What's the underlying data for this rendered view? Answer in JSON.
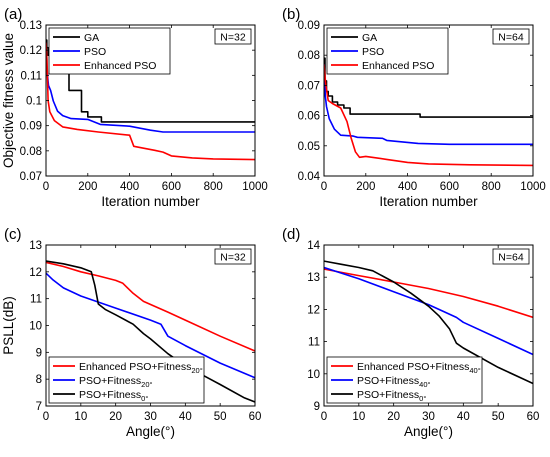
{
  "chart_data": [
    {
      "panel_label": "(a)",
      "type": "line",
      "badge": "N=32",
      "xlabel": "Iteration number",
      "ylabel": "Objective fitness value",
      "xlim": [
        0,
        1000
      ],
      "ylim": [
        0.07,
        0.13
      ],
      "xticks": [
        0,
        200,
        400,
        600,
        800,
        1000
      ],
      "yticks": [
        0.07,
        0.08,
        0.09,
        0.1,
        0.11,
        0.12,
        0.13
      ],
      "legend_position": "top-left",
      "series": [
        {
          "name": "GA",
          "color": "#000000",
          "step": true,
          "points": [
            [
              0,
              0.124
            ],
            [
              4,
              0.121
            ],
            [
              10,
              0.118
            ],
            [
              22,
              0.115
            ],
            [
              45,
              0.113
            ],
            [
              85,
              0.111
            ],
            [
              110,
              0.104
            ],
            [
              170,
              0.0955
            ],
            [
              190,
              0.0955
            ],
            [
              200,
              0.0935
            ],
            [
              250,
              0.0935
            ],
            [
              265,
              0.0915
            ],
            [
              1000,
              0.0915
            ]
          ]
        },
        {
          "name": "PSO",
          "color": "#0000ff",
          "step": false,
          "points": [
            [
              0,
              0.118
            ],
            [
              5,
              0.112
            ],
            [
              12,
              0.106
            ],
            [
              22,
              0.104
            ],
            [
              35,
              0.0998
            ],
            [
              55,
              0.0958
            ],
            [
              80,
              0.094
            ],
            [
              120,
              0.0928
            ],
            [
              200,
              0.0925
            ],
            [
              260,
              0.0905
            ],
            [
              400,
              0.0898
            ],
            [
              500,
              0.0882
            ],
            [
              560,
              0.0875
            ],
            [
              1000,
              0.0875
            ]
          ]
        },
        {
          "name": "Enhanced PSO",
          "color": "#ff0000",
          "step": false,
          "points": [
            [
              0,
              0.123
            ],
            [
              5,
              0.116
            ],
            [
              10,
              0.1
            ],
            [
              18,
              0.0955
            ],
            [
              40,
              0.092
            ],
            [
              80,
              0.0895
            ],
            [
              150,
              0.0885
            ],
            [
              250,
              0.0875
            ],
            [
              400,
              0.0862
            ],
            [
              420,
              0.0818
            ],
            [
              470,
              0.081
            ],
            [
              520,
              0.0802
            ],
            [
              560,
              0.0795
            ],
            [
              600,
              0.078
            ],
            [
              700,
              0.0772
            ],
            [
              800,
              0.0768
            ],
            [
              1000,
              0.0765
            ]
          ]
        }
      ]
    },
    {
      "panel_label": "(b)",
      "type": "line",
      "badge": "N=64",
      "xlabel": "Iteration number",
      "ylabel": "",
      "xlim": [
        0,
        1000
      ],
      "ylim": [
        0.04,
        0.09
      ],
      "xticks": [
        0,
        200,
        400,
        600,
        800,
        1000
      ],
      "yticks": [
        0.04,
        0.05,
        0.06,
        0.07,
        0.08,
        0.09
      ],
      "legend_position": "top-left",
      "series": [
        {
          "name": "GA",
          "color": "#000000",
          "step": true,
          "points": [
            [
              0,
              0.079
            ],
            [
              5,
              0.0715
            ],
            [
              12,
              0.068
            ],
            [
              20,
              0.0665
            ],
            [
              40,
              0.0645
            ],
            [
              65,
              0.0635
            ],
            [
              95,
              0.0625
            ],
            [
              125,
              0.0605
            ],
            [
              445,
              0.0605
            ],
            [
              460,
              0.0595
            ],
            [
              1000,
              0.0595
            ]
          ]
        },
        {
          "name": "PSO",
          "color": "#0000ff",
          "step": false,
          "points": [
            [
              0,
              0.077
            ],
            [
              6,
              0.0665
            ],
            [
              12,
              0.063
            ],
            [
              25,
              0.059
            ],
            [
              50,
              0.0555
            ],
            [
              80,
              0.0535
            ],
            [
              140,
              0.0532
            ],
            [
              160,
              0.0528
            ],
            [
              280,
              0.0525
            ],
            [
              300,
              0.0518
            ],
            [
              450,
              0.0508
            ],
            [
              600,
              0.0505
            ],
            [
              1000,
              0.0505
            ]
          ]
        },
        {
          "name": "Enhanced PSO",
          "color": "#ff0000",
          "step": false,
          "points": [
            [
              0,
              0.077
            ],
            [
              8,
              0.0705
            ],
            [
              20,
              0.065
            ],
            [
              40,
              0.064
            ],
            [
              80,
              0.0625
            ],
            [
              110,
              0.058
            ],
            [
              130,
              0.0525
            ],
            [
              150,
              0.048
            ],
            [
              170,
              0.0462
            ],
            [
              200,
              0.0465
            ],
            [
              300,
              0.0455
            ],
            [
              400,
              0.0445
            ],
            [
              500,
              0.044
            ],
            [
              700,
              0.0437
            ],
            [
              1000,
              0.0435
            ]
          ]
        }
      ]
    },
    {
      "panel_label": "(c)",
      "type": "line",
      "badge": "N=32",
      "xlabel": "Angle(°)",
      "ylabel": "PSLL(dB)",
      "xlim": [
        0,
        60
      ],
      "ylim": [
        7,
        13
      ],
      "xticks": [
        0,
        10,
        20,
        30,
        40,
        50,
        60
      ],
      "yticks": [
        7,
        8,
        9,
        10,
        11,
        12,
        13
      ],
      "legend_position": "bottom-left",
      "series": [
        {
          "name": "Enhanced PSO+Fitness",
          "subscript": "20°",
          "color": "#ff0000",
          "step": false,
          "points": [
            [
              0,
              12.35
            ],
            [
              5,
              12.2
            ],
            [
              10,
              12.0
            ],
            [
              15,
              11.85
            ],
            [
              20,
              11.68
            ],
            [
              22,
              11.58
            ],
            [
              25,
              11.2
            ],
            [
              28,
              10.9
            ],
            [
              35,
              10.5
            ],
            [
              40,
              10.2
            ],
            [
              50,
              9.6
            ],
            [
              60,
              9.05
            ]
          ]
        },
        {
          "name": "PSO+Fitness",
          "subscript": "20°",
          "color": "#0000ff",
          "step": false,
          "points": [
            [
              0,
              11.95
            ],
            [
              2,
              11.7
            ],
            [
              5,
              11.4
            ],
            [
              10,
              11.1
            ],
            [
              20,
              10.65
            ],
            [
              30,
              10.2
            ],
            [
              33,
              10.05
            ],
            [
              35,
              9.6
            ],
            [
              40,
              9.25
            ],
            [
              50,
              8.6
            ],
            [
              60,
              8.05
            ]
          ]
        },
        {
          "name": "PSO+Fitness",
          "subscript": "0°",
          "color": "#000000",
          "step": false,
          "points": [
            [
              0,
              12.4
            ],
            [
              5,
              12.3
            ],
            [
              10,
              12.15
            ],
            [
              13,
              12.0
            ],
            [
              14,
              11.5
            ],
            [
              15,
              10.8
            ],
            [
              17,
              10.6
            ],
            [
              20,
              10.4
            ],
            [
              25,
              10.05
            ],
            [
              28,
              9.7
            ],
            [
              30,
              9.5
            ],
            [
              35,
              8.95
            ],
            [
              40,
              8.5
            ],
            [
              50,
              7.8
            ],
            [
              57,
              7.3
            ],
            [
              60,
              7.15
            ]
          ]
        }
      ]
    },
    {
      "panel_label": "(d)",
      "type": "line",
      "badge": "N=64",
      "xlabel": "Angle(°)",
      "ylabel": "",
      "xlim": [
        0,
        60
      ],
      "ylim": [
        9,
        14
      ],
      "xticks": [
        0,
        10,
        20,
        30,
        40,
        50,
        60
      ],
      "yticks": [
        9,
        10,
        11,
        12,
        13,
        14
      ],
      "legend_position": "bottom-left",
      "series": [
        {
          "name": "Enhanced PSO+Fitness",
          "subscript": "40°",
          "color": "#ff0000",
          "step": false,
          "points": [
            [
              0,
              13.25
            ],
            [
              10,
              13.05
            ],
            [
              20,
              12.85
            ],
            [
              30,
              12.65
            ],
            [
              40,
              12.4
            ],
            [
              50,
              12.1
            ],
            [
              60,
              11.75
            ]
          ]
        },
        {
          "name": "PSO+Fitness",
          "subscript": "40°",
          "color": "#0000ff",
          "step": false,
          "points": [
            [
              0,
              13.3
            ],
            [
              10,
              12.95
            ],
            [
              20,
              12.55
            ],
            [
              30,
              12.15
            ],
            [
              33,
              12.0
            ],
            [
              38,
              11.75
            ],
            [
              40,
              11.6
            ],
            [
              50,
              11.1
            ],
            [
              60,
              10.6
            ]
          ]
        },
        {
          "name": "PSO+Fitness",
          "subscript": "0°",
          "color": "#000000",
          "step": false,
          "points": [
            [
              0,
              13.5
            ],
            [
              5,
              13.4
            ],
            [
              10,
              13.3
            ],
            [
              14,
              13.2
            ],
            [
              20,
              12.85
            ],
            [
              25,
              12.5
            ],
            [
              30,
              12.1
            ],
            [
              33,
              11.8
            ],
            [
              36,
              11.4
            ],
            [
              38,
              10.95
            ],
            [
              40,
              10.8
            ],
            [
              50,
              10.2
            ],
            [
              60,
              9.7
            ]
          ]
        }
      ]
    }
  ]
}
